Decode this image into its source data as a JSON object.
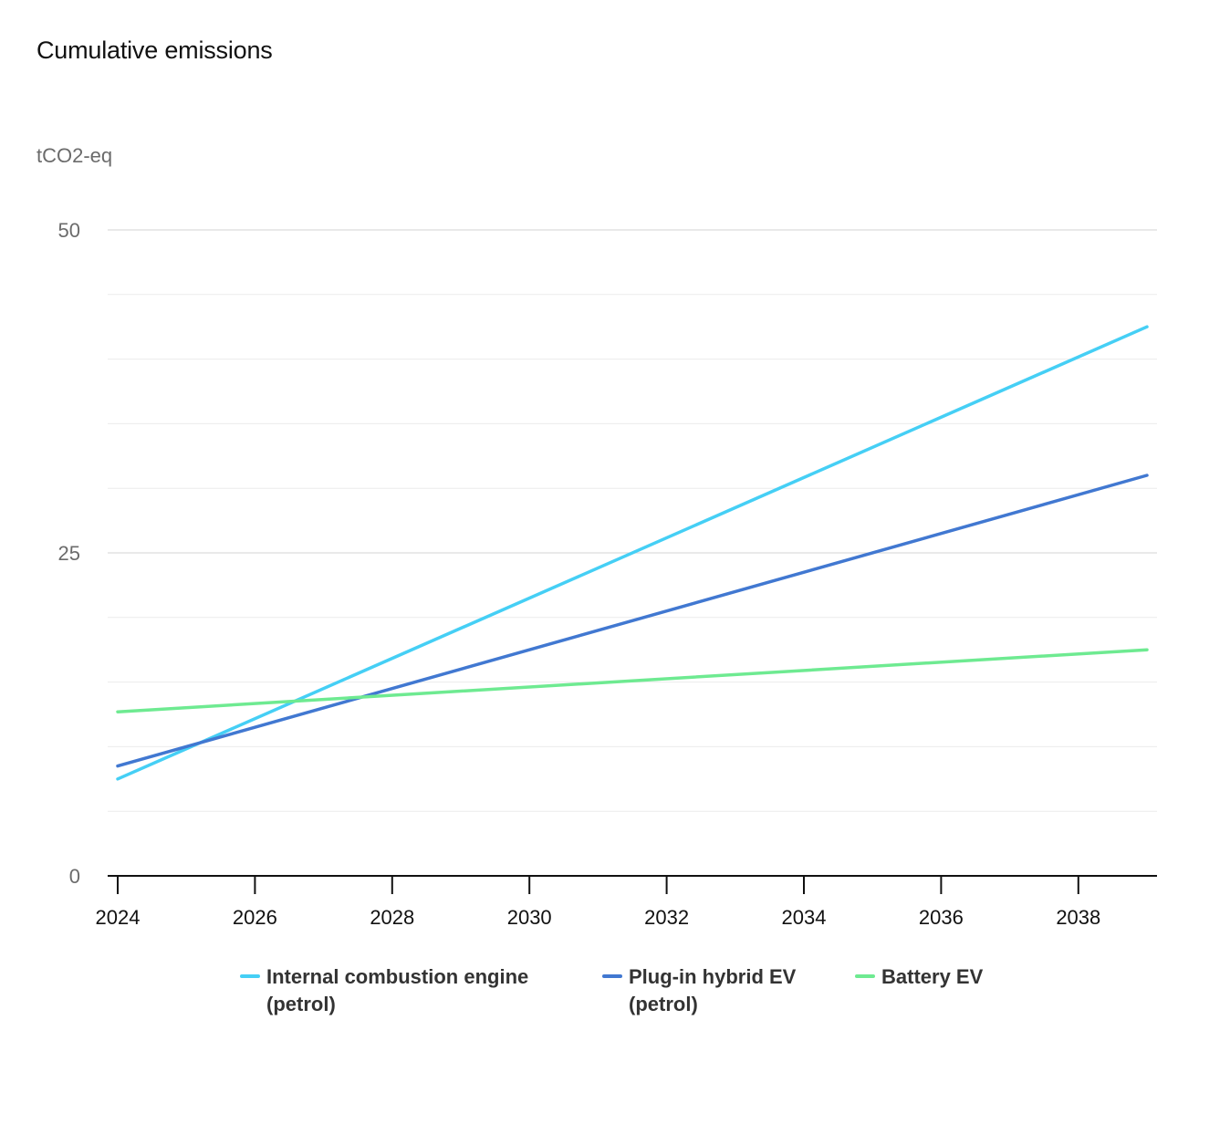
{
  "title": "Cumulative emissions",
  "y_unit": "tCO2-eq",
  "chart_data": {
    "type": "line",
    "title": "Cumulative emissions",
    "ylabel": "tCO2-eq",
    "xlabel": "",
    "xlim": [
      2023.7,
      2039.2
    ],
    "ylim": [
      0,
      50
    ],
    "x_ticks": [
      2024,
      2026,
      2028,
      2030,
      2032,
      2034,
      2036,
      2038
    ],
    "y_ticks": [
      0,
      25,
      50
    ],
    "y_minor_gridlines": [
      5,
      10,
      15,
      20,
      30,
      35,
      40,
      45
    ],
    "grid": true,
    "legend_position": "bottom",
    "series": [
      {
        "name": "Internal combustion engine (petrol)",
        "color": "#45CFF5",
        "x": [
          2024,
          2039
        ],
        "y": [
          7.5,
          42.5
        ]
      },
      {
        "name": "Plug-in hybrid EV (petrol)",
        "color": "#4178D1",
        "x": [
          2024,
          2039
        ],
        "y": [
          8.5,
          31.0
        ]
      },
      {
        "name": "Battery EV",
        "color": "#6EEA91",
        "x": [
          2024,
          2039
        ],
        "y": [
          12.7,
          17.5
        ]
      }
    ]
  }
}
